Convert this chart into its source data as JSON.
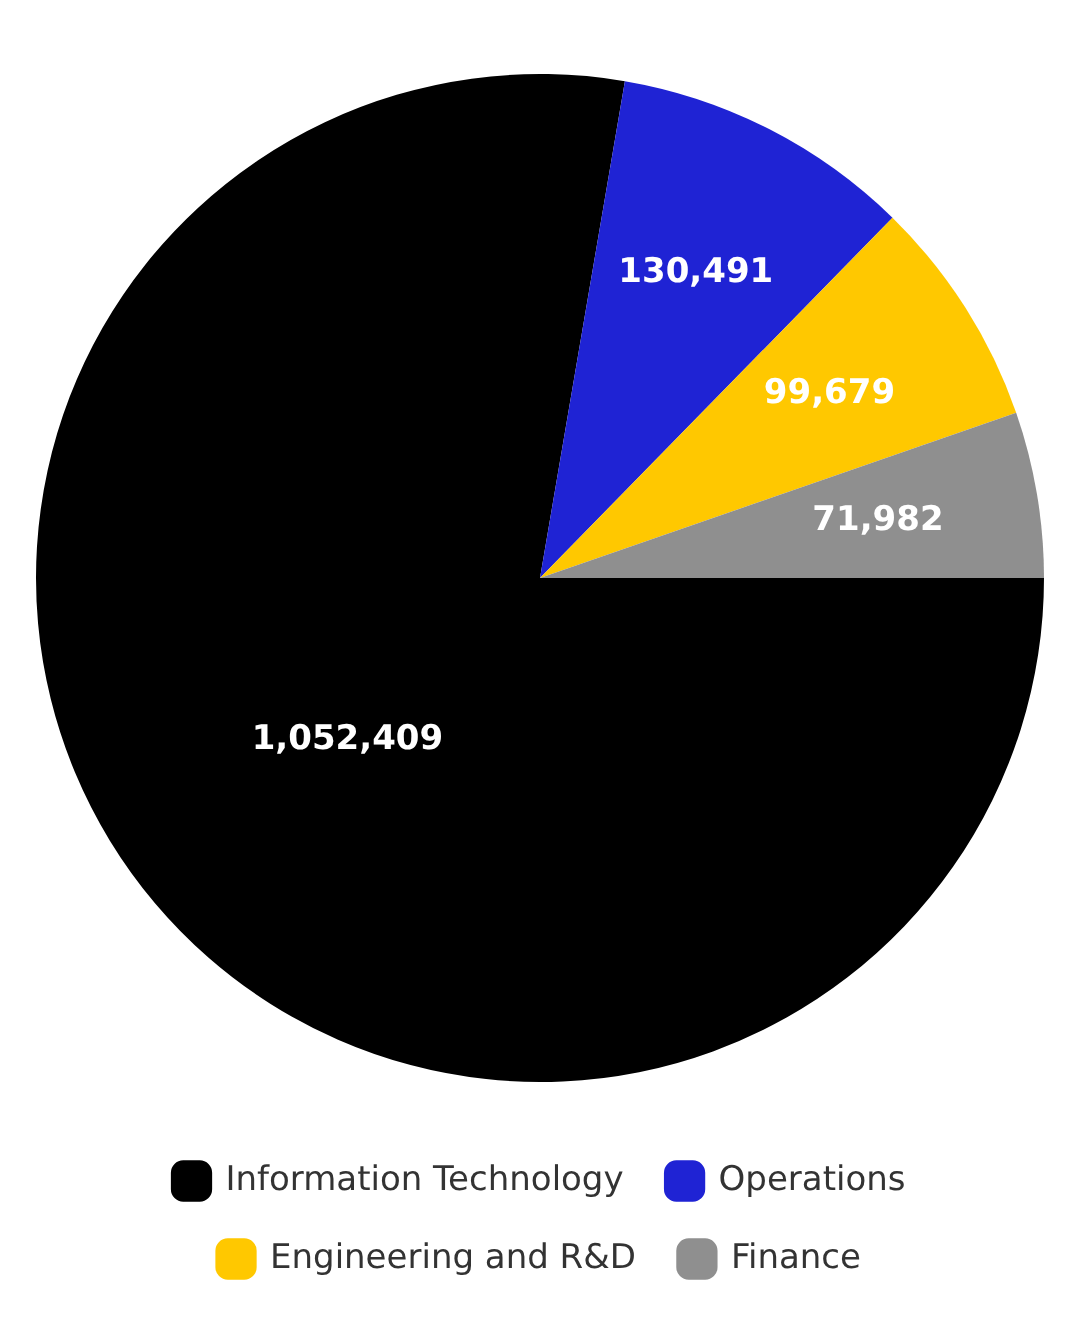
{
  "chart_data": {
    "type": "pie",
    "categories": [
      "Information Technology",
      "Operations",
      "Engineering and R&D",
      "Finance"
    ],
    "values": [
      1052409,
      130491,
      99679,
      71982
    ],
    "value_labels": [
      "1,052,409",
      "130,491",
      "99,679",
      "71,982"
    ],
    "colors": [
      "#000000",
      "#1f23d4",
      "#ffc800",
      "#8f8f8f"
    ],
    "legend": "bottom"
  }
}
